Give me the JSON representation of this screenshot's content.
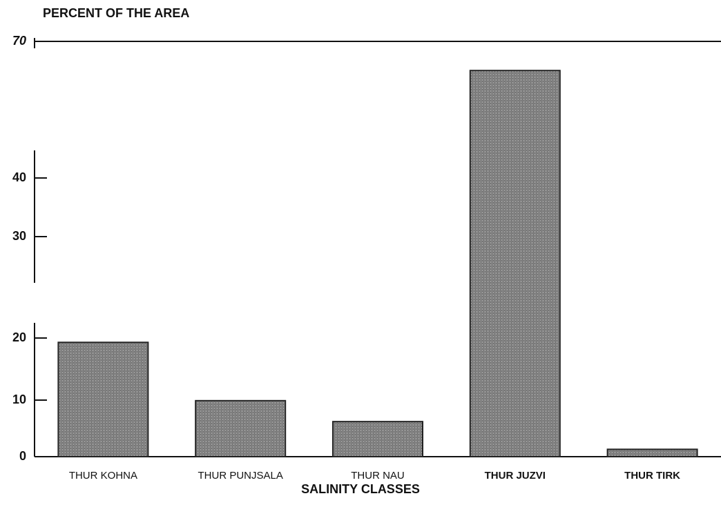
{
  "chart_data": {
    "type": "bar",
    "title": "PERCENT OF THE AREA",
    "x_label": "SALINITY CLASSES",
    "categories": [
      "THUR KOHNA",
      "THUR PUNJSALA",
      "THUR NAU",
      "THUR JUZVI",
      "THUR TIRK"
    ],
    "values": [
      19.3,
      9.9,
      6.2,
      63.6,
      1.3
    ],
    "color": "#8a8a8a",
    "ylim": [
      0,
      70
    ],
    "yticks": [
      0,
      10,
      20,
      30,
      40,
      70
    ],
    "broken_axis": true
  }
}
